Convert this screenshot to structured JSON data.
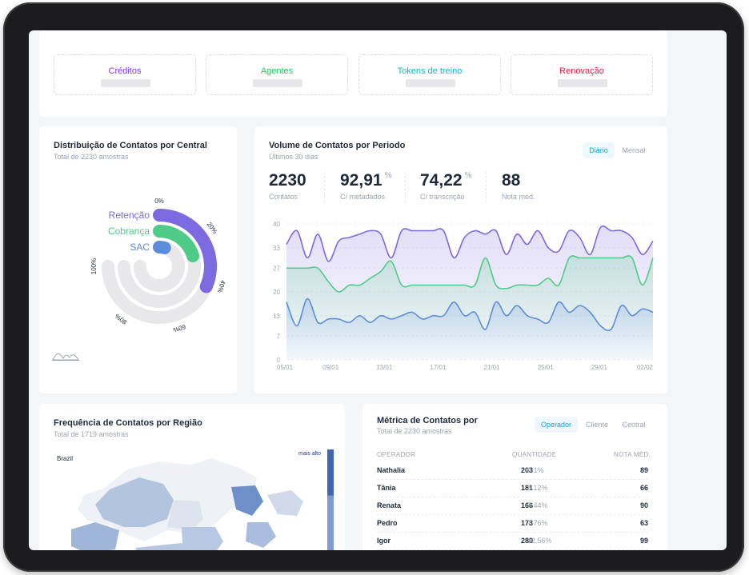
{
  "stats": [
    {
      "label": "Créditos",
      "color": "#7c3aed"
    },
    {
      "label": "Agentes",
      "color": "#22c55e"
    },
    {
      "label": "Tokens de treino",
      "color": "#06b6d4"
    },
    {
      "label": "Renovação",
      "color": "#e11d48"
    }
  ],
  "distribution": {
    "title": "Distribuição de Contatos por Central",
    "subtitle": "Total de 2230 amostras",
    "chart_data": {
      "type": "radial-bar",
      "series": [
        {
          "name": "Retenção",
          "value": 42,
          "color": "#7c6ae0"
        },
        {
          "name": "Cobrança",
          "value": 27,
          "color": "#4ecb86"
        },
        {
          "name": "SAC",
          "value": 6,
          "color": "#5b8ddb"
        }
      ],
      "scale_labels": [
        "0%",
        "20%",
        "40%",
        "60%",
        "80%",
        "100%"
      ],
      "ylim": [
        0,
        100
      ]
    }
  },
  "volume": {
    "title": "Volume de Contatos por Periodo",
    "subtitle": "Últimos 30 dias",
    "toggle": [
      "Diário",
      "Mensal"
    ],
    "metrics": [
      {
        "value": "2230",
        "pct": "",
        "label": "Contatos"
      },
      {
        "value": "92,91",
        "pct": "%",
        "label": "C/ metadados"
      },
      {
        "value": "74,22",
        "pct": "%",
        "label": "C/ transcrição"
      },
      {
        "value": "88",
        "pct": "",
        "label": "Nota méd."
      }
    ],
    "chart_data": {
      "type": "area",
      "x_ticks": [
        "05/01",
        "09/01",
        "13/01",
        "17/01",
        "21/01",
        "25/01",
        "29/01",
        "02/02"
      ],
      "y_ticks": [
        0,
        7,
        13,
        20,
        27,
        33,
        40
      ],
      "ylim": [
        0,
        40
      ],
      "series": [
        {
          "color": "#7c6ae0",
          "values": [
            34,
            38,
            30,
            37,
            29,
            35,
            36,
            37,
            38,
            37,
            30,
            38,
            38,
            38,
            38,
            38,
            30,
            36,
            38,
            37,
            38,
            31,
            37,
            34,
            38,
            33,
            32,
            38,
            36,
            31,
            39,
            38,
            38,
            36,
            31,
            35
          ]
        },
        {
          "color": "#4ecb86",
          "values": [
            27,
            27,
            27,
            27,
            23,
            20,
            22,
            22,
            24,
            26,
            29,
            22,
            22,
            22,
            22,
            22,
            22,
            22,
            22,
            30,
            22,
            21,
            22,
            22,
            22,
            24,
            22,
            30,
            30,
            30,
            30,
            30,
            30,
            30,
            22,
            30
          ]
        },
        {
          "color": "#5b8ddb",
          "values": [
            17,
            10,
            18,
            11,
            12,
            12,
            11,
            13,
            11,
            13,
            12,
            13,
            14,
            12,
            13,
            13,
            17,
            13,
            14,
            9,
            17,
            13,
            16,
            13,
            12,
            11,
            17,
            14,
            16,
            14,
            10,
            9,
            16,
            13,
            15,
            14
          ]
        }
      ]
    }
  },
  "region": {
    "title": "Frequência de Contatos por Região",
    "subtitle": "Total de 1719 amostras",
    "map_label": "Brazil",
    "legend_label": "mais alto"
  },
  "metrics_table": {
    "title": "Métrica de Contatos por",
    "subtitle": "Total de 2230 amostras",
    "tabs": [
      "Operador",
      "Cliente",
      "Central"
    ],
    "headers": [
      "OPERADOR",
      "QUANTIDADE",
      "NOTA MÉD."
    ],
    "rows": [
      {
        "name": "Nathalia",
        "qty": "203",
        "pct": "9.1%",
        "nota": "89"
      },
      {
        "name": "Tânia",
        "qty": "181",
        "pct": "8.12%",
        "nota": "66"
      },
      {
        "name": "Renata",
        "qty": "166",
        "pct": "7.44%",
        "nota": "90"
      },
      {
        "name": "Pedro",
        "qty": "173",
        "pct": "7.76%",
        "nota": "63"
      },
      {
        "name": "Igor",
        "qty": "280",
        "pct": "12.56%",
        "nota": "99"
      }
    ]
  }
}
